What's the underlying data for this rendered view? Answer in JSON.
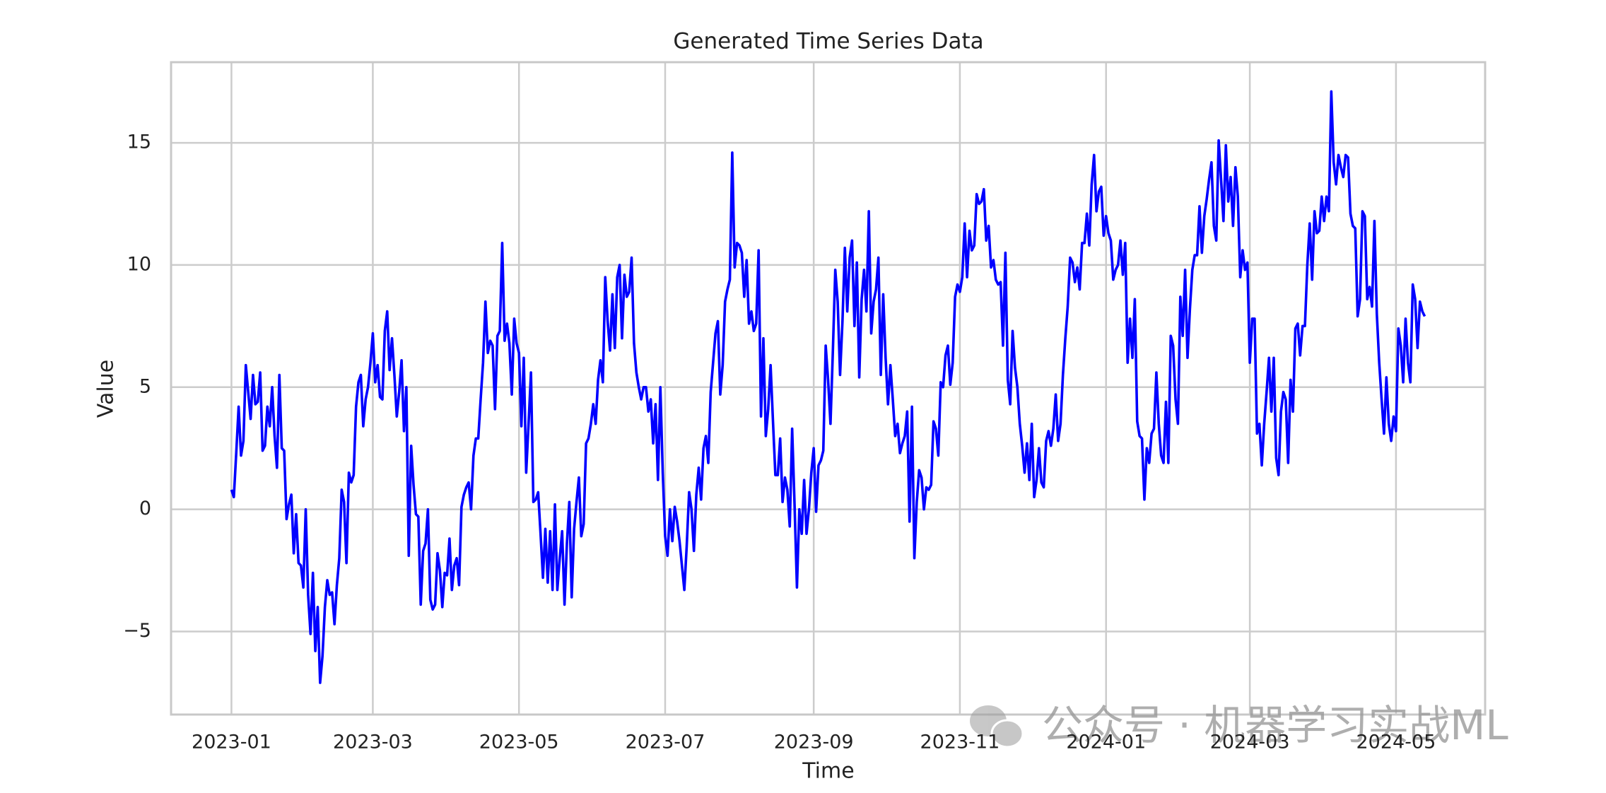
{
  "chart_data": {
    "type": "line",
    "title": "Generated Time Series Data",
    "x_label": "Time",
    "y_label": "Value",
    "color": "#0000ff",
    "grid": true,
    "xlim": [
      -25.2,
      523.2
    ],
    "ylim": [
      -8.4,
      18.3
    ],
    "xticks": [
      {
        "value": 0,
        "label": "2023-01"
      },
      {
        "value": 59,
        "label": "2023-03"
      },
      {
        "value": 120,
        "label": "2023-05"
      },
      {
        "value": 181,
        "label": "2023-07"
      },
      {
        "value": 243,
        "label": "2023-09"
      },
      {
        "value": 304,
        "label": "2023-11"
      },
      {
        "value": 365,
        "label": "2024-01"
      },
      {
        "value": 425,
        "label": "2024-03"
      },
      {
        "value": 486,
        "label": "2024-05"
      }
    ],
    "yticks": [
      {
        "value": -5,
        "label": "−5"
      },
      0,
      5,
      10,
      15
    ],
    "x": [
      0,
      1,
      2,
      3,
      4,
      5,
      6,
      7,
      8,
      9,
      10,
      11,
      12,
      13,
      14,
      15,
      16,
      17,
      18,
      19,
      20,
      21,
      22,
      23,
      24,
      25,
      26,
      27,
      28,
      29,
      30,
      31,
      32,
      33,
      34,
      35,
      36,
      37,
      38,
      39,
      40,
      41,
      42,
      43,
      44,
      45,
      46,
      47,
      48,
      49,
      50,
      51,
      52,
      53,
      54,
      55,
      56,
      57,
      58,
      59,
      60,
      61,
      62,
      63,
      64,
      65,
      66,
      67,
      68,
      69,
      70,
      71,
      72,
      73,
      74,
      75,
      76,
      77,
      78,
      79,
      80,
      81,
      82,
      83,
      84,
      85,
      86,
      87,
      88,
      89,
      90,
      91,
      92,
      93,
      94,
      95,
      96,
      97,
      98,
      99,
      100,
      101,
      102,
      103,
      104,
      105,
      106,
      107,
      108,
      109,
      110,
      111,
      112,
      113,
      114,
      115,
      116,
      117,
      118,
      119,
      120,
      121,
      122,
      123,
      124,
      125,
      126,
      127,
      128,
      129,
      130,
      131,
      132,
      133,
      134,
      135,
      136,
      137,
      138,
      139,
      140,
      141,
      142,
      143,
      144,
      145,
      146,
      147,
      148,
      149,
      150,
      151,
      152,
      153,
      154,
      155,
      156,
      157,
      158,
      159,
      160,
      161,
      162,
      163,
      164,
      165,
      166,
      167,
      168,
      169,
      170,
      171,
      172,
      173,
      174,
      175,
      176,
      177,
      178,
      179,
      180,
      181,
      182,
      183,
      184,
      185,
      186,
      187,
      188,
      189,
      190,
      191,
      192,
      193,
      194,
      195,
      196,
      197,
      198,
      199,
      200,
      201,
      202,
      203,
      204,
      205,
      206,
      207,
      208,
      209,
      210,
      211,
      212,
      213,
      214,
      215,
      216,
      217,
      218,
      219,
      220,
      221,
      222,
      223,
      224,
      225,
      226,
      227,
      228,
      229,
      230,
      231,
      232,
      233,
      234,
      235,
      236,
      237,
      238,
      239,
      240,
      241,
      242,
      243,
      244,
      245,
      246,
      247,
      248,
      249,
      250,
      251,
      252,
      253,
      254,
      255,
      256,
      257,
      258,
      259,
      260,
      261,
      262,
      263,
      264,
      265,
      266,
      267,
      268,
      269,
      270,
      271,
      272,
      273,
      274,
      275,
      276,
      277,
      278,
      279,
      280,
      281,
      282,
      283,
      284,
      285,
      286,
      287,
      288,
      289,
      290,
      291,
      292,
      293,
      294,
      295,
      296,
      297,
      298,
      299,
      300,
      301,
      302,
      303,
      304,
      305,
      306,
      307,
      308,
      309,
      310,
      311,
      312,
      313,
      314,
      315,
      316,
      317,
      318,
      319,
      320,
      321,
      322,
      323,
      324,
      325,
      326,
      327,
      328,
      329,
      330,
      331,
      332,
      333,
      334,
      335,
      336,
      337,
      338,
      339,
      340,
      341,
      342,
      343,
      344,
      345,
      346,
      347,
      348,
      349,
      350,
      351,
      352,
      353,
      354,
      355,
      356,
      357,
      358,
      359,
      360,
      361,
      362,
      363,
      364,
      365,
      366,
      367,
      368,
      369,
      370,
      371,
      372,
      373,
      374,
      375,
      376,
      377,
      378,
      379,
      380,
      381,
      382,
      383,
      384,
      385,
      386,
      387,
      388,
      389,
      390,
      391,
      392,
      393,
      394,
      395,
      396,
      397,
      398,
      399,
      400,
      401,
      402,
      403,
      404,
      405,
      406,
      407,
      408,
      409,
      410,
      411,
      412,
      413,
      414,
      415,
      416,
      417,
      418,
      419,
      420,
      421,
      422,
      423,
      424,
      425,
      426,
      427,
      428,
      429,
      430,
      431,
      432,
      433,
      434,
      435,
      436,
      437,
      438,
      439,
      440,
      441,
      442,
      443,
      444,
      445,
      446,
      447,
      448,
      449,
      450,
      451,
      452,
      453,
      454,
      455,
      456,
      457,
      458,
      459,
      460,
      461,
      462,
      463,
      464,
      465,
      466,
      467,
      468,
      469,
      470,
      471,
      472,
      473,
      474,
      475,
      476,
      477,
      478,
      479,
      480,
      481,
      482,
      483,
      484,
      485,
      486,
      487,
      488,
      489,
      490,
      491,
      492,
      493,
      494,
      495,
      496,
      497,
      498
    ],
    "values": [
      0.8,
      0.5,
      2.3,
      4.2,
      2.2,
      2.8,
      5.9,
      4.8,
      3.7,
      5.5,
      4.3,
      4.4,
      5.6,
      2.4,
      2.6,
      4.2,
      3.4,
      5.0,
      3.0,
      1.7,
      5.5,
      2.5,
      2.4,
      -0.4,
      0.2,
      0.6,
      -1.8,
      -0.2,
      -2.2,
      -2.3,
      -3.2,
      0.0,
      -3.5,
      -5.1,
      -2.6,
      -5.8,
      -4.0,
      -7.1,
      -6.0,
      -4.0,
      -2.9,
      -3.5,
      -3.4,
      -4.7,
      -3.1,
      -2.0,
      0.8,
      0.3,
      -2.2,
      1.5,
      1.1,
      1.4,
      4.2,
      5.2,
      5.5,
      3.4,
      4.5,
      5.0,
      6.0,
      7.2,
      5.2,
      5.9,
      4.6,
      4.5,
      7.3,
      8.1,
      5.7,
      7.0,
      5.5,
      3.8,
      4.8,
      6.1,
      3.2,
      5.0,
      -1.9,
      2.6,
      1.0,
      -0.2,
      -0.3,
      -3.9,
      -1.7,
      -1.4,
      0.0,
      -3.7,
      -4.1,
      -3.9,
      -1.8,
      -2.5,
      -4.0,
      -2.6,
      -2.7,
      -1.2,
      -3.3,
      -2.3,
      -2.0,
      -3.1,
      0.1,
      0.6,
      0.9,
      1.1,
      0.0,
      2.2,
      2.9,
      2.9,
      4.5,
      6.0,
      8.5,
      6.4,
      6.9,
      6.7,
      4.1,
      7.1,
      7.3,
      10.9,
      6.9,
      7.6,
      6.8,
      4.7,
      7.8,
      6.8,
      6.4,
      3.4,
      6.2,
      1.5,
      3.5,
      5.6,
      0.3,
      0.4,
      0.7,
      -1.0,
      -2.8,
      -0.8,
      -3.0,
      -0.9,
      -3.3,
      0.2,
      -3.3,
      -2.0,
      -0.9,
      -3.9,
      -1.4,
      0.3,
      -3.6,
      -0.8,
      0.3,
      1.3,
      -1.1,
      -0.6,
      2.7,
      2.9,
      3.5,
      4.3,
      3.5,
      5.3,
      6.1,
      5.2,
      9.5,
      7.7,
      6.5,
      8.8,
      6.6,
      9.5,
      10.0,
      7.0,
      9.6,
      8.7,
      8.9,
      10.3,
      6.8,
      5.6,
      5.0,
      4.5,
      5.0,
      5.0,
      4.0,
      4.5,
      2.7,
      4.3,
      1.2,
      5.0,
      1.5,
      -1.1,
      -1.9,
      0.0,
      -1.3,
      0.1,
      -0.5,
      -1.3,
      -2.3,
      -3.3,
      -1.5,
      0.7,
      0.0,
      -1.7,
      0.6,
      1.7,
      0.4,
      2.5,
      3.0,
      1.9,
      4.8,
      6.0,
      7.2,
      7.7,
      4.7,
      5.9,
      8.5,
      9.0,
      9.4,
      14.6,
      9.9,
      10.9,
      10.8,
      10.5,
      8.7,
      10.2,
      7.6,
      8.1,
      7.3,
      7.6,
      10.6,
      3.8,
      7.0,
      3.0,
      4.1,
      5.9,
      3.6,
      1.4,
      1.4,
      2.9,
      0.3,
      1.3,
      0.8,
      -0.7,
      3.3,
      0.2,
      -3.2,
      0.0,
      -1.0,
      1.2,
      -1.0,
      0.0,
      1.5,
      2.5,
      -0.1,
      1.8,
      2.0,
      2.4,
      6.7,
      5.3,
      3.5,
      6.5,
      9.8,
      8.5,
      5.5,
      7.7,
      10.7,
      8.1,
      10.3,
      11.0,
      7.5,
      10.1,
      5.4,
      8.6,
      9.8,
      8.1,
      12.2,
      7.2,
      8.5,
      9.0,
      10.3,
      5.5,
      8.8,
      6.2,
      4.3,
      5.9,
      4.5,
      3.0,
      3.5,
      2.3,
      2.7,
      3.0,
      4.0,
      -0.5,
      4.2,
      -2.0,
      0.3,
      1.6,
      1.3,
      0.0,
      0.9,
      0.8,
      1.0,
      3.6,
      3.3,
      2.2,
      5.2,
      5.0,
      6.3,
      6.7,
      5.1,
      6.0,
      8.7,
      9.2,
      8.9,
      9.5,
      11.7,
      9.5,
      11.4,
      10.6,
      10.8,
      12.9,
      12.5,
      12.6,
      13.1,
      11.0,
      11.6,
      9.9,
      10.2,
      9.4,
      9.2,
      9.3,
      6.7,
      10.5,
      5.3,
      4.3,
      7.3,
      5.8,
      5.0,
      3.5,
      2.6,
      1.5,
      2.7,
      1.2,
      3.5,
      0.5,
      1.2,
      2.5,
      1.1,
      0.9,
      2.8,
      3.2,
      2.6,
      3.3,
      4.7,
      2.8,
      3.5,
      5.5,
      7.0,
      8.3,
      10.3,
      10.1,
      9.3,
      9.9,
      9.0,
      10.9,
      10.9,
      12.1,
      10.8,
      13.3,
      14.5,
      12.2,
      13.0,
      13.2,
      11.2,
      12.0,
      11.3,
      11.0,
      9.4,
      9.8,
      10.0,
      11.0,
      9.6,
      10.9,
      6.0,
      7.8,
      6.2,
      8.6,
      3.6,
      3.0,
      2.9,
      0.4,
      2.5,
      1.9,
      3.1,
      3.3,
      5.6,
      3.5,
      2.2,
      1.9,
      4.4,
      1.9,
      7.1,
      6.7,
      4.5,
      3.5,
      8.7,
      7.1,
      9.8,
      6.2,
      8.2,
      9.8,
      10.4,
      10.4,
      12.4,
      10.5,
      12.0,
      12.7,
      13.5,
      14.2,
      11.6,
      11.0,
      15.1,
      13.5,
      11.8,
      14.9,
      12.6,
      13.6,
      11.6,
      14.0,
      12.8,
      9.5,
      10.6,
      9.8,
      10.1,
      6.0,
      7.8,
      7.8,
      3.1,
      3.5,
      1.8,
      3.5,
      4.8,
      6.2,
      4.0,
      6.2,
      2.1,
      1.4,
      4.0,
      4.8,
      4.5,
      1.9,
      5.3,
      4.0,
      7.4,
      7.6,
      6.3,
      7.5,
      7.5,
      10.0,
      11.7,
      9.4,
      12.2,
      11.3,
      11.4,
      12.8,
      11.8,
      12.8,
      12.2,
      17.1,
      14.2,
      13.3,
      14.5,
      14.0,
      13.6,
      14.5,
      14.4,
      12.1,
      11.6,
      11.5,
      7.9,
      8.6,
      12.2,
      12.0,
      8.6,
      9.1,
      8.3,
      11.8,
      8.0,
      6.0,
      4.5,
      3.1,
      5.4,
      3.5,
      2.8,
      3.8,
      3.2,
      7.4,
      6.7,
      5.2,
      7.8,
      6.0,
      5.2,
      9.2,
      8.6,
      6.6,
      8.5,
      8.1,
      7.9
    ]
  },
  "watermark": "公众号 · 机器学习实战ML"
}
